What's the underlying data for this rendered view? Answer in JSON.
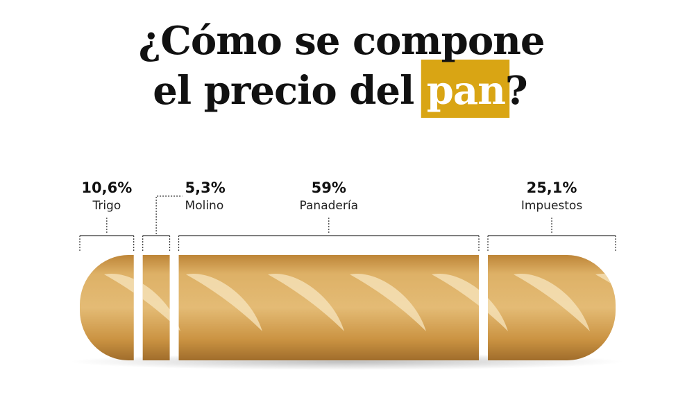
{
  "chart_data": {
    "type": "bar",
    "title": {
      "line1": "¿Cómo se compone",
      "line2": "el precio del",
      "highlight": "pan",
      "end": "?"
    },
    "highlight_color": "#d9a514",
    "categories": [
      "Trigo",
      "Molino",
      "Panadería",
      "Impuestos"
    ],
    "values": [
      10.6,
      5.3,
      59,
      25.1
    ],
    "value_labels": [
      "10,6%",
      "5,3%",
      "59%",
      "25,1%"
    ],
    "color": "#d9a85a"
  }
}
